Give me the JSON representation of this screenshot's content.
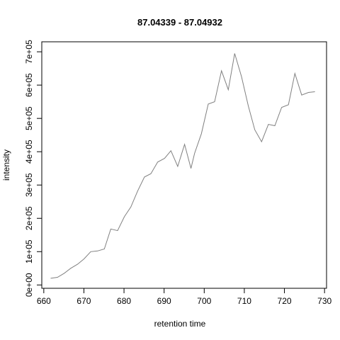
{
  "chart_data": {
    "type": "line",
    "title": "87.04339 - 87.04932",
    "xlabel": "retention time",
    "ylabel": "intensity",
    "xlim": [
      659.5,
      730.5
    ],
    "ylim": [
      -10000,
      730000
    ],
    "x_ticks": [
      660,
      670,
      680,
      690,
      700,
      710,
      720,
      730
    ],
    "x_tick_labels": [
      "660",
      "670",
      "680",
      "690",
      "700",
      "710",
      "720",
      "730"
    ],
    "y_ticks": [
      0,
      100000,
      200000,
      300000,
      400000,
      500000,
      600000,
      700000
    ],
    "y_tick_labels": [
      "0e+00",
      "1e+05",
      "2e+05",
      "3e+05",
      "4e+05",
      "5e+05",
      "6e+05",
      "7e+05"
    ],
    "grid": false,
    "legend": "none",
    "series": [
      {
        "color": "#808080",
        "x": [
          661.7,
          663.4,
          665.1,
          666.7,
          668.4,
          670.0,
          671.7,
          673.4,
          675.1,
          676.7,
          678.4,
          680.1,
          681.7,
          683.4,
          685.1,
          686.7,
          688.4,
          690.1,
          691.7,
          693.4,
          695.1,
          696.7,
          697.6,
          699.3,
          701.0,
          702.6,
          704.3,
          706.0,
          707.6,
          709.3,
          711.0,
          712.6,
          714.3,
          716.0,
          717.6,
          719.3,
          721.0,
          722.6,
          724.3,
          726.0,
          727.6
        ],
        "y": [
          20000,
          23000,
          35000,
          50000,
          62000,
          78000,
          100000,
          102000,
          108000,
          168000,
          163000,
          205000,
          234000,
          282000,
          324000,
          334000,
          369000,
          380000,
          403000,
          356000,
          422000,
          350000,
          395000,
          454000,
          543000,
          550000,
          643000,
          586000,
          695000,
          625000,
          537000,
          466000,
          430000,
          482000,
          478000,
          533000,
          541000,
          635000,
          570000,
          578000,
          580000
        ]
      }
    ]
  }
}
